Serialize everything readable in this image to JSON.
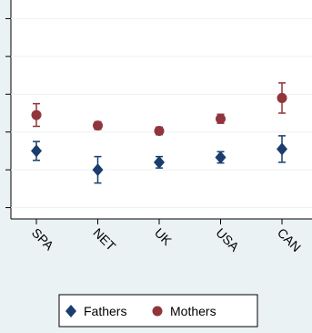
{
  "chart_data": {
    "type": "scatter",
    "categories": [
      "SPA",
      "NET",
      "UK",
      "USA",
      "CAN"
    ],
    "series": [
      {
        "name": "Fathers",
        "color": "#1a3d6e",
        "marker": "diamond",
        "values": [
          1.5,
          1.0,
          1.2,
          1.33,
          1.55
        ],
        "errors": [
          0.25,
          0.35,
          0.15,
          0.15,
          0.35
        ]
      },
      {
        "name": "Mothers",
        "color": "#90353b",
        "marker": "circle",
        "values": [
          2.45,
          2.17,
          2.03,
          2.35,
          2.9
        ],
        "errors": [
          0.3,
          0.1,
          0.1,
          0.12,
          0.4
        ]
      }
    ],
    "ylim": [
      -0.3,
      5.3
    ],
    "yticks": [
      0,
      1,
      2,
      3,
      4,
      5
    ],
    "grid": true,
    "legend": "bottom"
  }
}
